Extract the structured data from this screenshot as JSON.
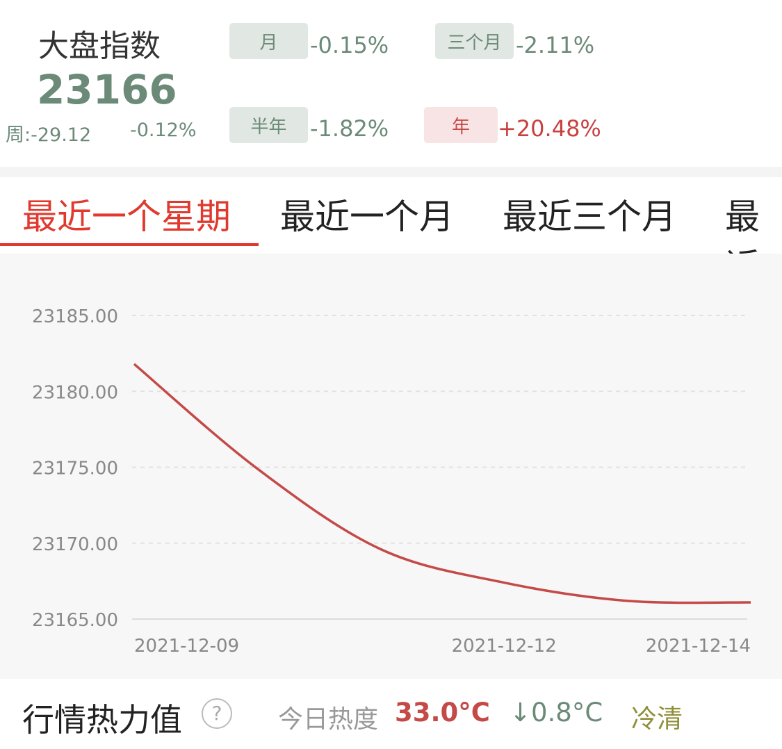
{
  "header": {
    "title": "大盘指数",
    "index_value": "23166",
    "week_change": "周:-29.12",
    "week_percent": "-0.12%",
    "periods": [
      {
        "label": "月",
        "change": "-0.15%"
      },
      {
        "label": "三个月",
        "change": "-2.11%"
      },
      {
        "label": "半年",
        "change": "-1.82%"
      },
      {
        "label": "年",
        "change": "+20.48%"
      }
    ]
  },
  "tabs": [
    "最近一个星期",
    "最近一个月",
    "最近三个月",
    "最近"
  ],
  "chart_data": {
    "type": "line",
    "categories": [
      "2021-12-09",
      null,
      null,
      "2021-12-12",
      null,
      "2021-12-14"
    ],
    "series": [
      {
        "color": "#c44a48",
        "values": [
          23181.8,
          23174.9,
          23169.6,
          23167.4,
          23166.2,
          23166.1
        ]
      }
    ],
    "ylim": [
      23165,
      23185
    ],
    "yticks": [
      {
        "value": 23165,
        "label": "23165.00"
      },
      {
        "value": 23170,
        "label": "23170.00"
      },
      {
        "value": 23175,
        "label": "23175.00"
      },
      {
        "value": 23180,
        "label": "23180.00"
      },
      {
        "value": 23185,
        "label": "23185.00"
      }
    ],
    "grid": true
  },
  "heat": {
    "title": "行情热力值",
    "help_icon": "?",
    "label": "今日热度",
    "temperature": "33.0°C",
    "change": "↓0.8°C",
    "mood": "冷清"
  }
}
